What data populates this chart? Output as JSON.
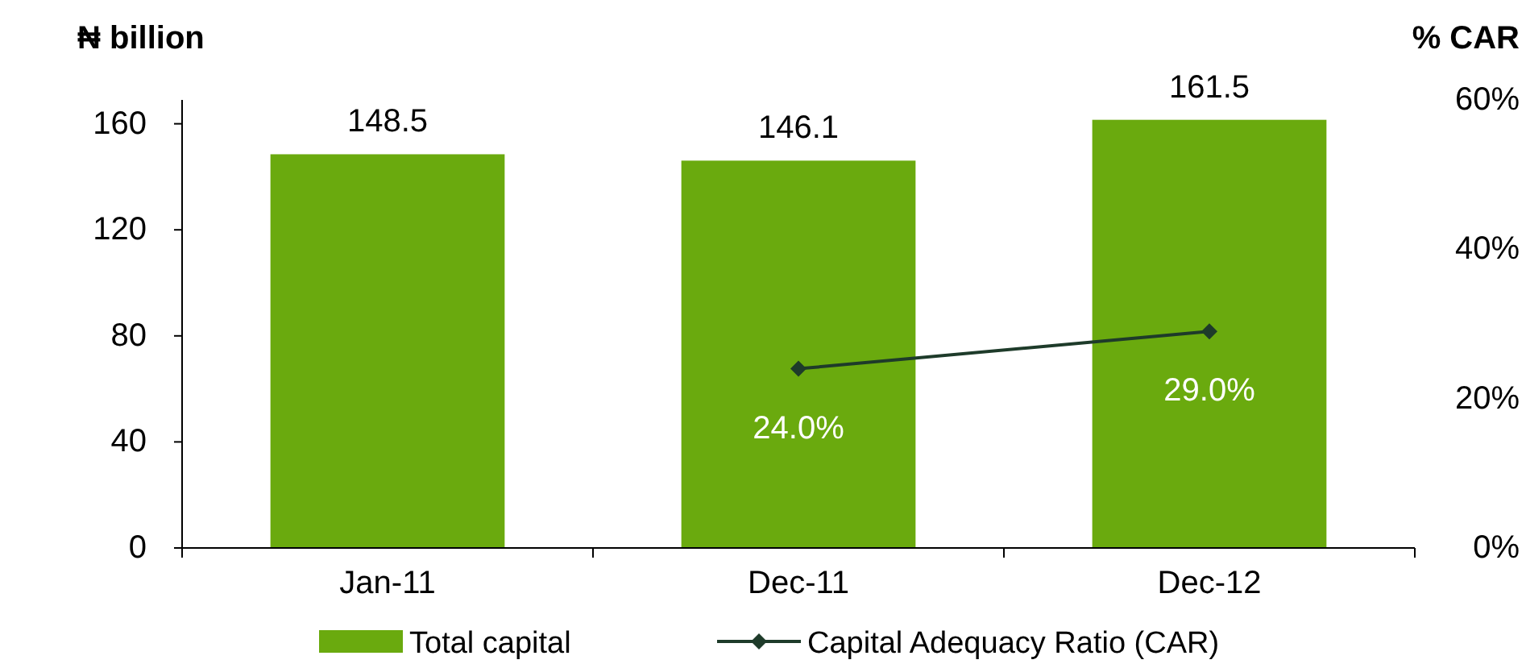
{
  "chart_data": {
    "type": "bar",
    "ylabel": "₦ billion",
    "y2label": "% CAR",
    "categories": [
      "Jan-11",
      "Dec-11",
      "Dec-12"
    ],
    "series": [
      {
        "name": "Total capital",
        "color": "#6aaa0e",
        "values": [
          148.5,
          146.1,
          161.5
        ]
      },
      {
        "name": "Capital Adequacy Ratio (CAR)",
        "type": "line",
        "axis": "y2",
        "color": "#1e3b2a",
        "values": [
          null,
          24.0,
          29.0
        ],
        "value_labels": [
          null,
          "24.0%",
          "29.0%"
        ],
        "marker": "diamond"
      }
    ],
    "ylim": [
      0,
      169
    ],
    "yticks": [
      0,
      40,
      80,
      120,
      160
    ],
    "y2lim": [
      0,
      60
    ],
    "y2ticks": [
      {
        "value": 0,
        "label": "0%"
      },
      {
        "value": 20,
        "label": "20%"
      },
      {
        "value": 40,
        "label": "40%"
      },
      {
        "value": 60,
        "label": "60%"
      }
    ],
    "data_labels": true,
    "legend": "bottom",
    "grid": false
  }
}
